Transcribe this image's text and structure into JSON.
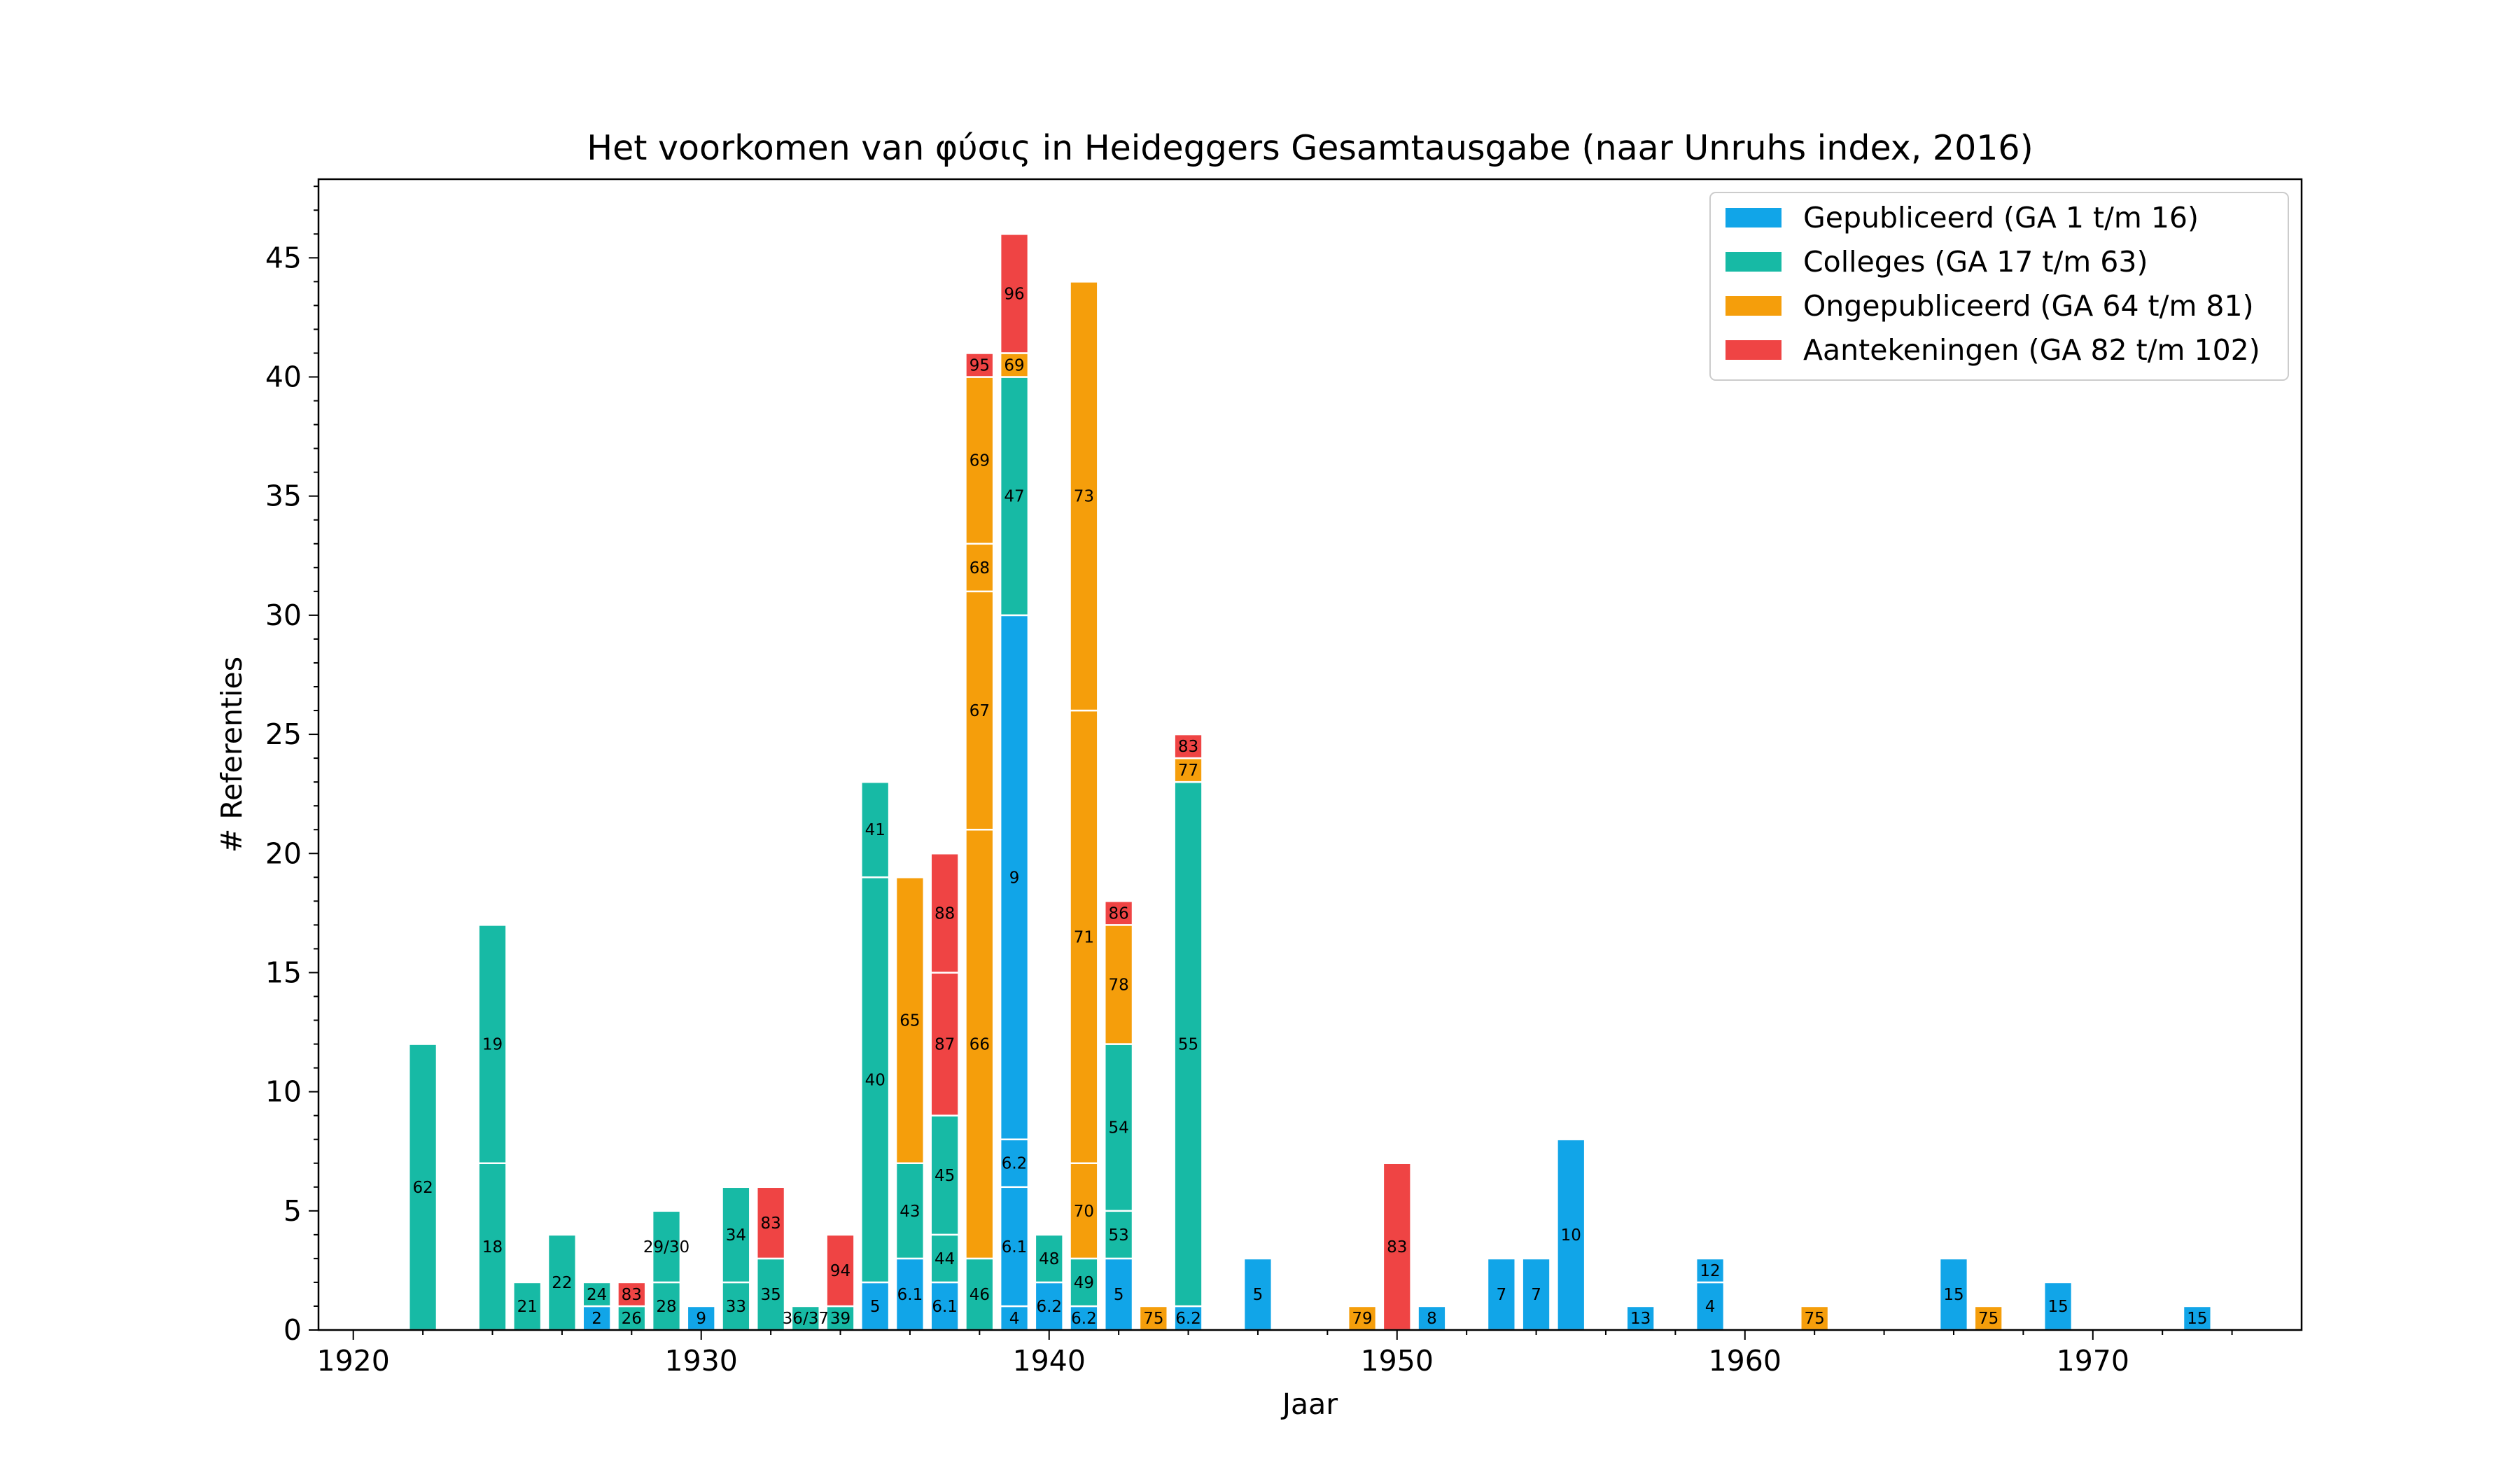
{
  "chart_data": {
    "type": "bar",
    "stacked": true,
    "title": "Het voorkomen van φύσις in Heideggers Gesamtausgabe (naar Unruhs index, 2016)",
    "xlabel": "Jaar",
    "ylabel": "# Referenties",
    "xlim": [
      1919,
      1976
    ],
    "ylim": [
      0,
      48.3
    ],
    "xticks": [
      1920,
      1930,
      1940,
      1950,
      1960,
      1970
    ],
    "yticks": [
      0,
      5,
      10,
      15,
      20,
      25,
      30,
      35,
      40,
      45
    ],
    "grid": false,
    "legend_position": "top-right",
    "series": [
      {
        "name": "Gepubliceerd (GA 1 t/m 16)",
        "color": "#11a5e8"
      },
      {
        "name": "Colleges (GA 17 t/m 63)",
        "color": "#17baa5"
      },
      {
        "name": "Ongepubliceerd (GA 64 t/m 81)",
        "color": "#f59e0b"
      },
      {
        "name": "Aantekeningen (GA 82 t/m 102)",
        "color": "#ef4444"
      }
    ],
    "bars": [
      {
        "year": 1922,
        "segments": [
          {
            "series": 1,
            "value": 12,
            "label": "62"
          }
        ]
      },
      {
        "year": 1924,
        "segments": [
          {
            "series": 1,
            "value": 7,
            "label": "18"
          },
          {
            "series": 1,
            "value": 10,
            "label": "19"
          }
        ]
      },
      {
        "year": 1925,
        "segments": [
          {
            "series": 1,
            "value": 2,
            "label": "21"
          }
        ]
      },
      {
        "year": 1926,
        "segments": [
          {
            "series": 1,
            "value": 4,
            "label": "22"
          }
        ]
      },
      {
        "year": 1927,
        "segments": [
          {
            "series": 0,
            "value": 1,
            "label": "2"
          },
          {
            "series": 1,
            "value": 1,
            "label": "24"
          }
        ]
      },
      {
        "year": 1928,
        "segments": [
          {
            "series": 1,
            "value": 1,
            "label": "26"
          },
          {
            "series": 3,
            "value": 1,
            "label": "83"
          }
        ]
      },
      {
        "year": 1929,
        "segments": [
          {
            "series": 1,
            "value": 2,
            "label": "28"
          },
          {
            "series": 1,
            "value": 3,
            "label": "29/30"
          }
        ]
      },
      {
        "year": 1930,
        "segments": [
          {
            "series": 0,
            "value": 1,
            "label": "9"
          }
        ]
      },
      {
        "year": 1931,
        "segments": [
          {
            "series": 1,
            "value": 2,
            "label": "33"
          },
          {
            "series": 1,
            "value": 4,
            "label": "34"
          }
        ]
      },
      {
        "year": 1932,
        "segments": [
          {
            "series": 1,
            "value": 3,
            "label": "35"
          },
          {
            "series": 3,
            "value": 3,
            "label": "83"
          }
        ]
      },
      {
        "year": 1933,
        "segments": [
          {
            "series": 1,
            "value": 1,
            "label": "36/37"
          }
        ]
      },
      {
        "year": 1934,
        "segments": [
          {
            "series": 1,
            "value": 1,
            "label": "39"
          },
          {
            "series": 3,
            "value": 3,
            "label": "94"
          }
        ]
      },
      {
        "year": 1935,
        "segments": [
          {
            "series": 0,
            "value": 2,
            "label": "5"
          },
          {
            "series": 1,
            "value": 17,
            "label": "40"
          },
          {
            "series": 1,
            "value": 4,
            "label": "41"
          }
        ]
      },
      {
        "year": 1936,
        "segments": [
          {
            "series": 0,
            "value": 3,
            "label": "6.1"
          },
          {
            "series": 1,
            "value": 4,
            "label": "43"
          },
          {
            "series": 2,
            "value": 12,
            "label": "65"
          }
        ]
      },
      {
        "year": 1937,
        "segments": [
          {
            "series": 0,
            "value": 2,
            "label": "6.1"
          },
          {
            "series": 1,
            "value": 2,
            "label": "44"
          },
          {
            "series": 1,
            "value": 5,
            "label": "45"
          },
          {
            "series": 3,
            "value": 6,
            "label": "87"
          },
          {
            "series": 3,
            "value": 5,
            "label": "88"
          }
        ]
      },
      {
        "year": 1938,
        "segments": [
          {
            "series": 1,
            "value": 3,
            "label": "46"
          },
          {
            "series": 2,
            "value": 18,
            "label": "66"
          },
          {
            "series": 2,
            "value": 10,
            "label": "67"
          },
          {
            "series": 2,
            "value": 2,
            "label": "68"
          },
          {
            "series": 2,
            "value": 7,
            "label": "69"
          },
          {
            "series": 3,
            "value": 1,
            "label": "95"
          }
        ]
      },
      {
        "year": 1939,
        "segments": [
          {
            "series": 0,
            "value": 1,
            "label": "4"
          },
          {
            "series": 0,
            "value": 5,
            "label": "6.1"
          },
          {
            "series": 0,
            "value": 2,
            "label": "6.2"
          },
          {
            "series": 0,
            "value": 22,
            "label": "9"
          },
          {
            "series": 1,
            "value": 10,
            "label": "47"
          },
          {
            "series": 2,
            "value": 1,
            "label": "69"
          },
          {
            "series": 3,
            "value": 5,
            "label": "96"
          }
        ]
      },
      {
        "year": 1940,
        "segments": [
          {
            "series": 0,
            "value": 2,
            "label": "6.2"
          },
          {
            "series": 1,
            "value": 2,
            "label": "48"
          }
        ]
      },
      {
        "year": 1941,
        "segments": [
          {
            "series": 0,
            "value": 1,
            "label": "6.2"
          },
          {
            "series": 1,
            "value": 2,
            "label": "49"
          },
          {
            "series": 2,
            "value": 4,
            "label": "70"
          },
          {
            "series": 2,
            "value": 19,
            "label": "71"
          },
          {
            "series": 2,
            "value": 18,
            "label": "73"
          }
        ]
      },
      {
        "year": 1942,
        "segments": [
          {
            "series": 0,
            "value": 3,
            "label": "5"
          },
          {
            "series": 1,
            "value": 2,
            "label": "53"
          },
          {
            "series": 1,
            "value": 7,
            "label": "54"
          },
          {
            "series": 2,
            "value": 5,
            "label": "78"
          },
          {
            "series": 3,
            "value": 1,
            "label": "86"
          }
        ]
      },
      {
        "year": 1943,
        "segments": [
          {
            "series": 2,
            "value": 1,
            "label": "75"
          }
        ]
      },
      {
        "year": 1944,
        "segments": [
          {
            "series": 0,
            "value": 1,
            "label": "6.2"
          },
          {
            "series": 1,
            "value": 22,
            "label": "55"
          },
          {
            "series": 2,
            "value": 1,
            "label": "77"
          },
          {
            "series": 3,
            "value": 1,
            "label": "83"
          }
        ]
      },
      {
        "year": 1946,
        "segments": [
          {
            "series": 0,
            "value": 3,
            "label": "5"
          }
        ]
      },
      {
        "year": 1949,
        "segments": [
          {
            "series": 2,
            "value": 1,
            "label": "79"
          }
        ]
      },
      {
        "year": 1950,
        "segments": [
          {
            "series": 3,
            "value": 7,
            "label": "83"
          }
        ]
      },
      {
        "year": 1951,
        "segments": [
          {
            "series": 0,
            "value": 1,
            "label": "8"
          }
        ]
      },
      {
        "year": 1953,
        "segments": [
          {
            "series": 0,
            "value": 3,
            "label": "7"
          }
        ]
      },
      {
        "year": 1954,
        "segments": [
          {
            "series": 0,
            "value": 3,
            "label": "7"
          }
        ]
      },
      {
        "year": 1955,
        "segments": [
          {
            "series": 0,
            "value": 8,
            "label": "10"
          }
        ]
      },
      {
        "year": 1957,
        "segments": [
          {
            "series": 0,
            "value": 1,
            "label": "13"
          }
        ]
      },
      {
        "year": 1959,
        "segments": [
          {
            "series": 0,
            "value": 2,
            "label": "4"
          },
          {
            "series": 0,
            "value": 1,
            "label": "12"
          }
        ]
      },
      {
        "year": 1962,
        "segments": [
          {
            "series": 2,
            "value": 1,
            "label": "75"
          }
        ]
      },
      {
        "year": 1966,
        "segments": [
          {
            "series": 0,
            "value": 3,
            "label": "15"
          }
        ]
      },
      {
        "year": 1967,
        "segments": [
          {
            "series": 2,
            "value": 1,
            "label": "75"
          }
        ]
      },
      {
        "year": 1969,
        "segments": [
          {
            "series": 0,
            "value": 2,
            "label": "15"
          }
        ]
      },
      {
        "year": 1973,
        "segments": [
          {
            "series": 0,
            "value": 1,
            "label": "15"
          }
        ]
      }
    ]
  }
}
